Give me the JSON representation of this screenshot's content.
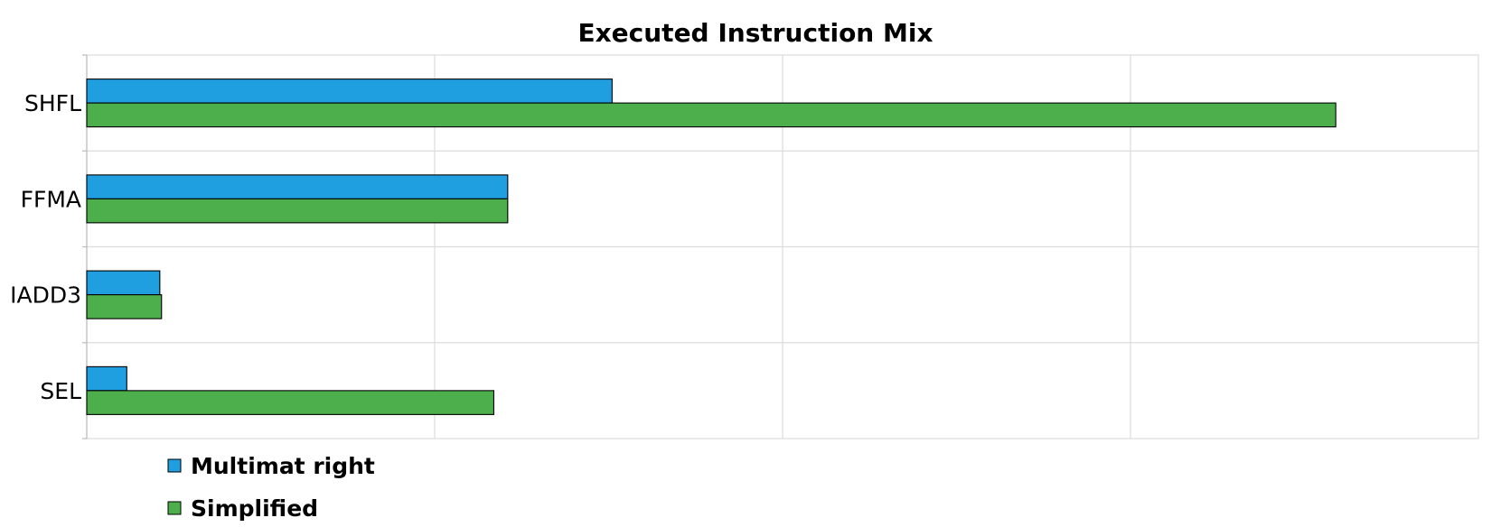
{
  "chart_data": {
    "type": "bar",
    "orientation": "horizontal",
    "title": "Executed Instruction Mix",
    "xlabel": "",
    "ylabel": "",
    "categories": [
      "SHFL",
      "FFMA",
      "IADD3",
      "SEL"
    ],
    "series": [
      {
        "name": "Multimat right",
        "color": "#1f9ee0",
        "values": [
          1.51,
          1.21,
          0.21,
          0.115
        ]
      },
      {
        "name": "Simplified",
        "color": "#4caf4c",
        "values": [
          3.59,
          1.21,
          0.215,
          1.17
        ]
      }
    ],
    "xlim": [
      0,
      4
    ],
    "tick_labels_shown": false,
    "grid": true,
    "legend_position": "bottom-left"
  }
}
